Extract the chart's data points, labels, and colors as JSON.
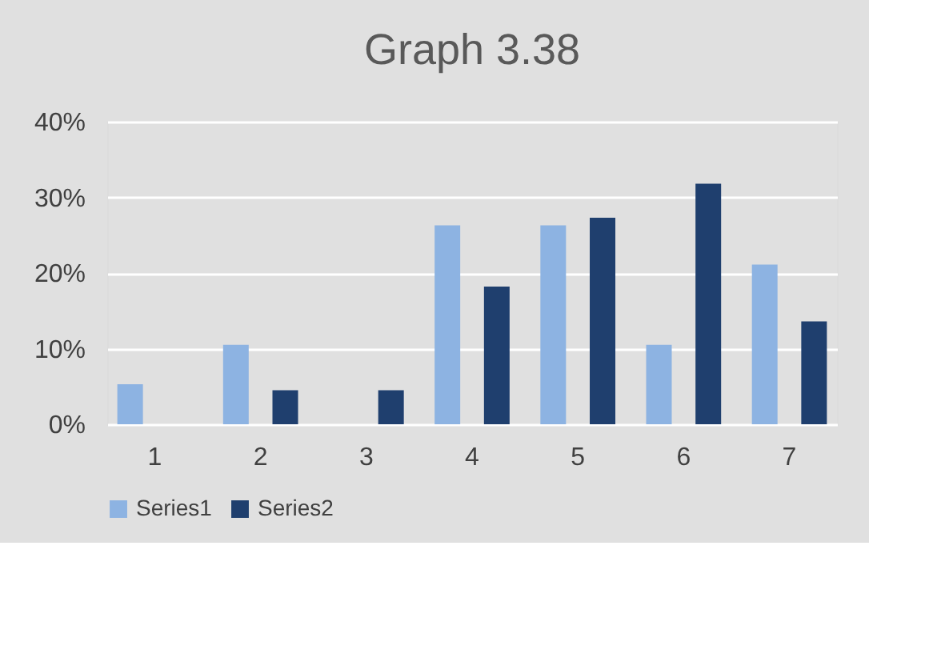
{
  "chart_data": {
    "type": "bar",
    "title": "Graph 3.38",
    "categories": [
      "1",
      "2",
      "3",
      "4",
      "5",
      "6",
      "7"
    ],
    "series": [
      {
        "name": "Series1",
        "color": "#8db3e2",
        "values": [
          5.3,
          10.5,
          0,
          26.3,
          26.3,
          10.5,
          21.1
        ]
      },
      {
        "name": "Series2",
        "color": "#1f3f6e",
        "values": [
          0,
          4.5,
          4.5,
          18.2,
          27.3,
          31.8,
          13.6
        ]
      }
    ],
    "ylim": [
      0,
      40
    ],
    "yticks": [
      {
        "value": 0,
        "label": "0%"
      },
      {
        "value": 10,
        "label": "10%"
      },
      {
        "value": 20,
        "label": "20%"
      },
      {
        "value": 30,
        "label": "30%"
      },
      {
        "value": 40,
        "label": "40%"
      }
    ],
    "grid": "y",
    "legend": "bottom"
  }
}
